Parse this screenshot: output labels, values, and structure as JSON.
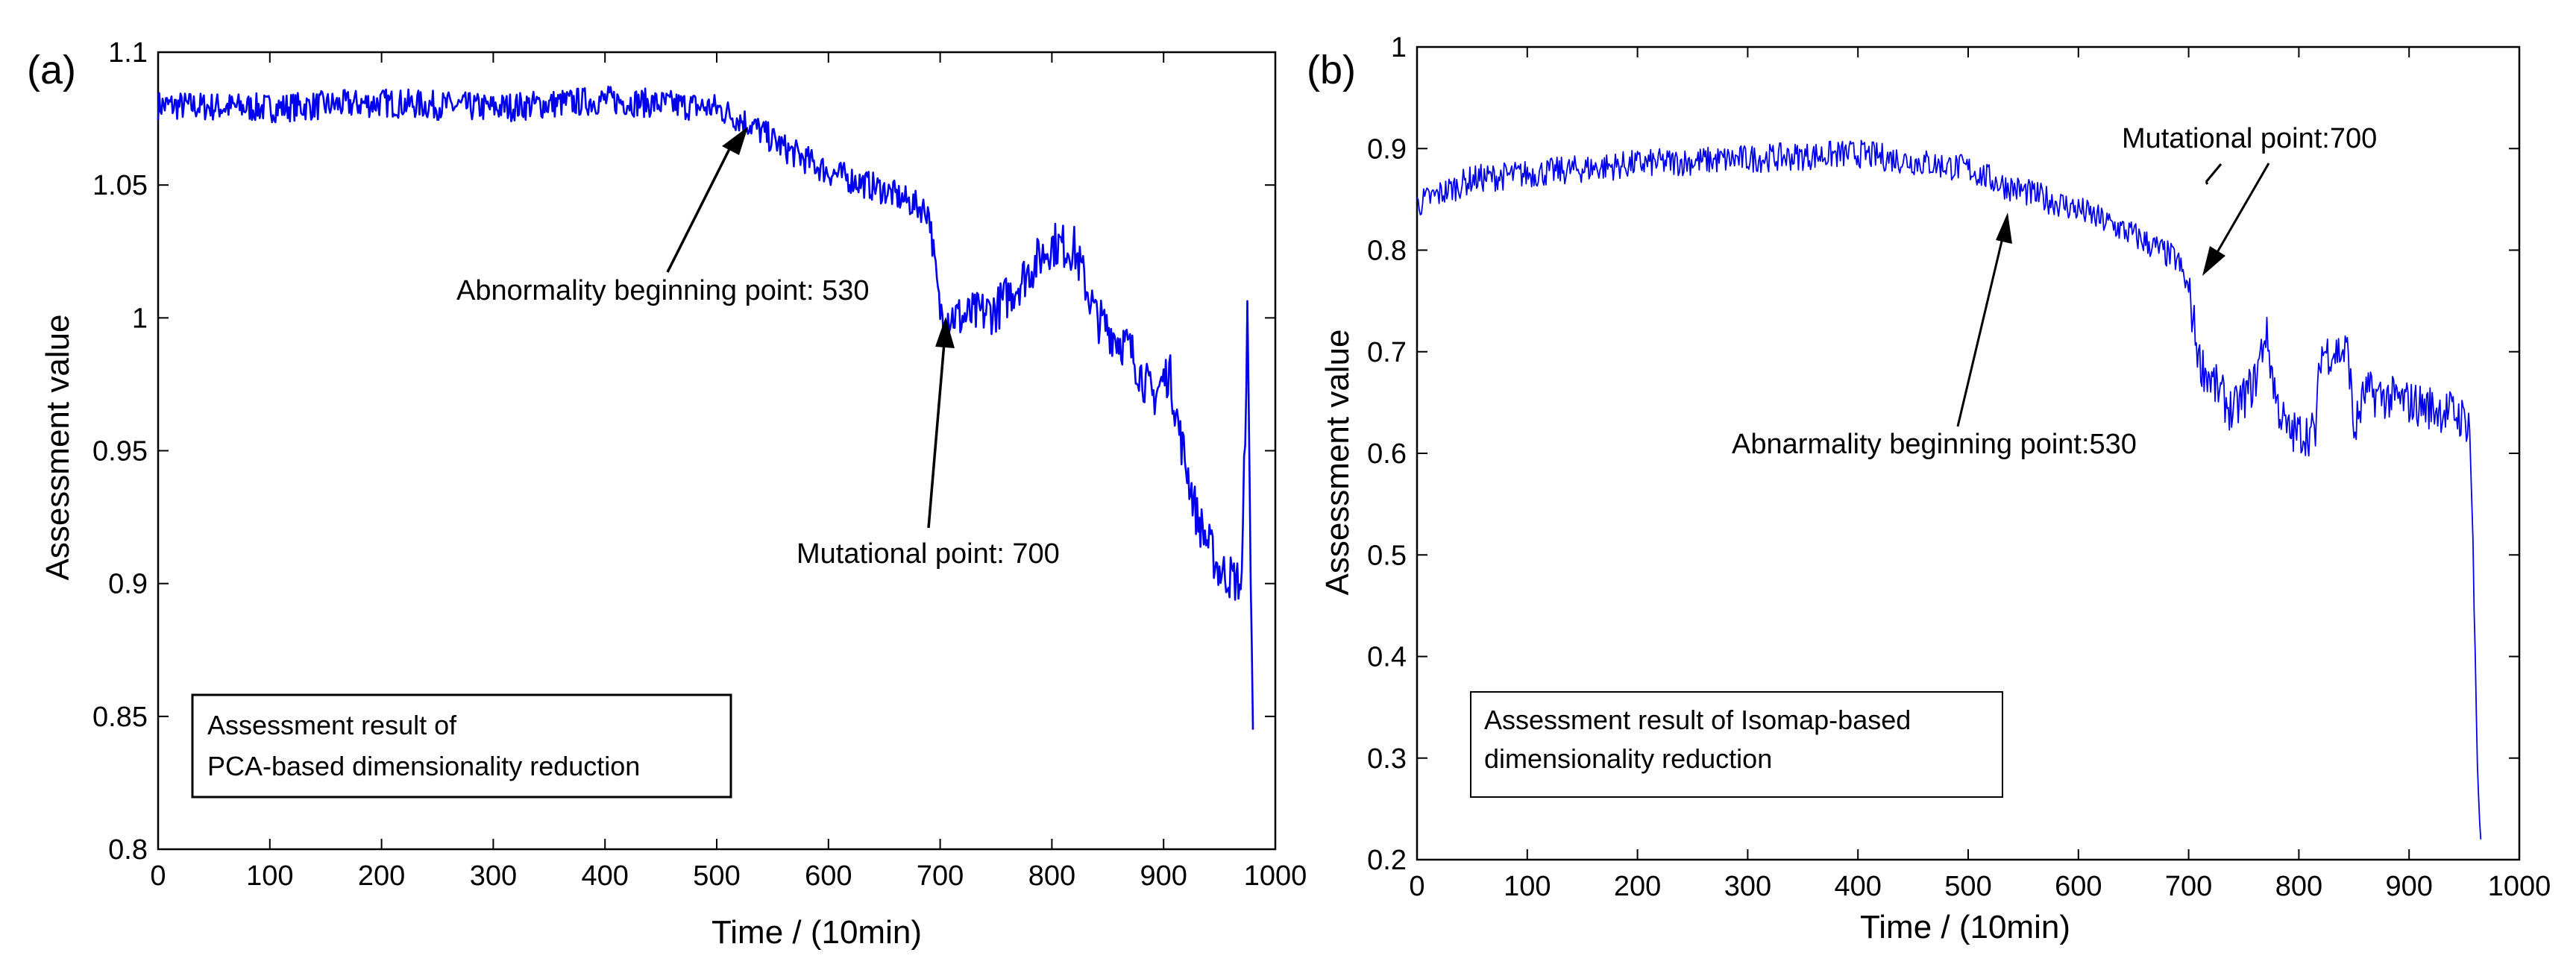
{
  "figure": {
    "description_labels": [
      "(a)",
      "(b)"
    ]
  },
  "chart_data": [
    {
      "type": "line",
      "panel_label": "(a)",
      "xlabel": "Time / (10min)",
      "ylabel": "Assessment value",
      "xlim": [
        0,
        1000
      ],
      "ylim": [
        0.8,
        1.1
      ],
      "xticks": [
        0,
        100,
        200,
        300,
        400,
        500,
        600,
        700,
        800,
        900,
        1000
      ],
      "xtick_labels": [
        "0",
        "100",
        "200",
        "300",
        "400",
        "500",
        "600",
        "700",
        "800",
        "900",
        "1000"
      ],
      "yticks": [
        0.8,
        0.85,
        0.9,
        0.95,
        1.0,
        1.05,
        1.1
      ],
      "ytick_labels": [
        "0.8",
        "0.85",
        "0.9",
        "0.95",
        "1",
        "1.05",
        "1.1"
      ],
      "line_color": "#0000ee",
      "series": [
        {
          "name": "Assessment result of PCA-based dimensionality reduction",
          "x_end": 980,
          "keypoints": [
            [
              0,
              1.08
            ],
            [
              100,
              1.079
            ],
            [
              200,
              1.081
            ],
            [
              300,
              1.079
            ],
            [
              400,
              1.082
            ],
            [
              500,
              1.079
            ],
            [
              530,
              1.073
            ],
            [
              560,
              1.064
            ],
            [
              600,
              1.055
            ],
            [
              650,
              1.048
            ],
            [
              690,
              1.04
            ],
            [
              700,
              1.002
            ],
            [
              720,
              1.0
            ],
            [
              750,
              1.003
            ],
            [
              780,
              1.018
            ],
            [
              800,
              1.028
            ],
            [
              820,
              1.026
            ],
            [
              840,
              1.0
            ],
            [
              870,
              0.988
            ],
            [
              890,
              0.97
            ],
            [
              905,
              0.98
            ],
            [
              915,
              0.955
            ],
            [
              930,
              0.925
            ],
            [
              950,
              0.905
            ],
            [
              970,
              0.9
            ],
            [
              975,
              1.0
            ],
            [
              980,
              0.845
            ]
          ]
        }
      ],
      "legend_lines": [
        "Assessment result of",
        "PCA-based dimensionality reduction"
      ],
      "annotations": [
        {
          "text": "Abnormality beginning point: 530",
          "x": 530,
          "y": 1.073
        },
        {
          "text": "Mutational point: 700",
          "x": 700,
          "y": 1.0
        }
      ]
    },
    {
      "type": "line",
      "panel_label": "(b)",
      "xlabel": "Time / (10min)",
      "ylabel": "Assessment  value",
      "xlim": [
        0,
        1000
      ],
      "ylim": [
        0.2,
        1.0
      ],
      "xticks": [
        0,
        100,
        200,
        300,
        400,
        500,
        600,
        700,
        800,
        900,
        1000
      ],
      "xtick_labels": [
        "0",
        "100",
        "200",
        "300",
        "400",
        "500",
        "600",
        "700",
        "800",
        "900",
        "1000"
      ],
      "yticks": [
        0.2,
        0.3,
        0.4,
        0.5,
        0.6,
        0.7,
        0.8,
        0.9,
        1.0
      ],
      "ytick_labels": [
        "0.2",
        "0.3",
        "0.4",
        "0.5",
        "0.6",
        "0.7",
        "0.8",
        "0.9",
        "1"
      ],
      "line_color": "#0000ee",
      "series": [
        {
          "name": "Assessment result of Isomap-based dimensionality reduction",
          "x_end": 965,
          "keypoints": [
            [
              0,
              0.845
            ],
            [
              50,
              0.87
            ],
            [
              100,
              0.875
            ],
            [
              200,
              0.885
            ],
            [
              300,
              0.89
            ],
            [
              400,
              0.895
            ],
            [
              500,
              0.88
            ],
            [
              530,
              0.865
            ],
            [
              600,
              0.84
            ],
            [
              650,
              0.815
            ],
            [
              690,
              0.79
            ],
            [
              700,
              0.76
            ],
            [
              710,
              0.69
            ],
            [
              740,
              0.64
            ],
            [
              760,
              0.67
            ],
            [
              770,
              0.72
            ],
            [
              780,
              0.65
            ],
            [
              790,
              0.62
            ],
            [
              815,
              0.62
            ],
            [
              820,
              0.7
            ],
            [
              845,
              0.7
            ],
            [
              850,
              0.62
            ],
            [
              860,
              0.66
            ],
            [
              900,
              0.65
            ],
            [
              940,
              0.64
            ],
            [
              955,
              0.63
            ],
            [
              958,
              0.5
            ],
            [
              962,
              0.3
            ],
            [
              965,
              0.22
            ]
          ]
        }
      ],
      "legend_lines": [
        "Assessment result of Isomap-based",
        "dimensionality reduction"
      ],
      "annotations": [
        {
          "text": "Mutational point:700",
          "x": 700,
          "y": 0.77
        },
        {
          "text": "Abnarmality beginning point:530",
          "x": 530,
          "y": 0.87
        }
      ]
    }
  ]
}
